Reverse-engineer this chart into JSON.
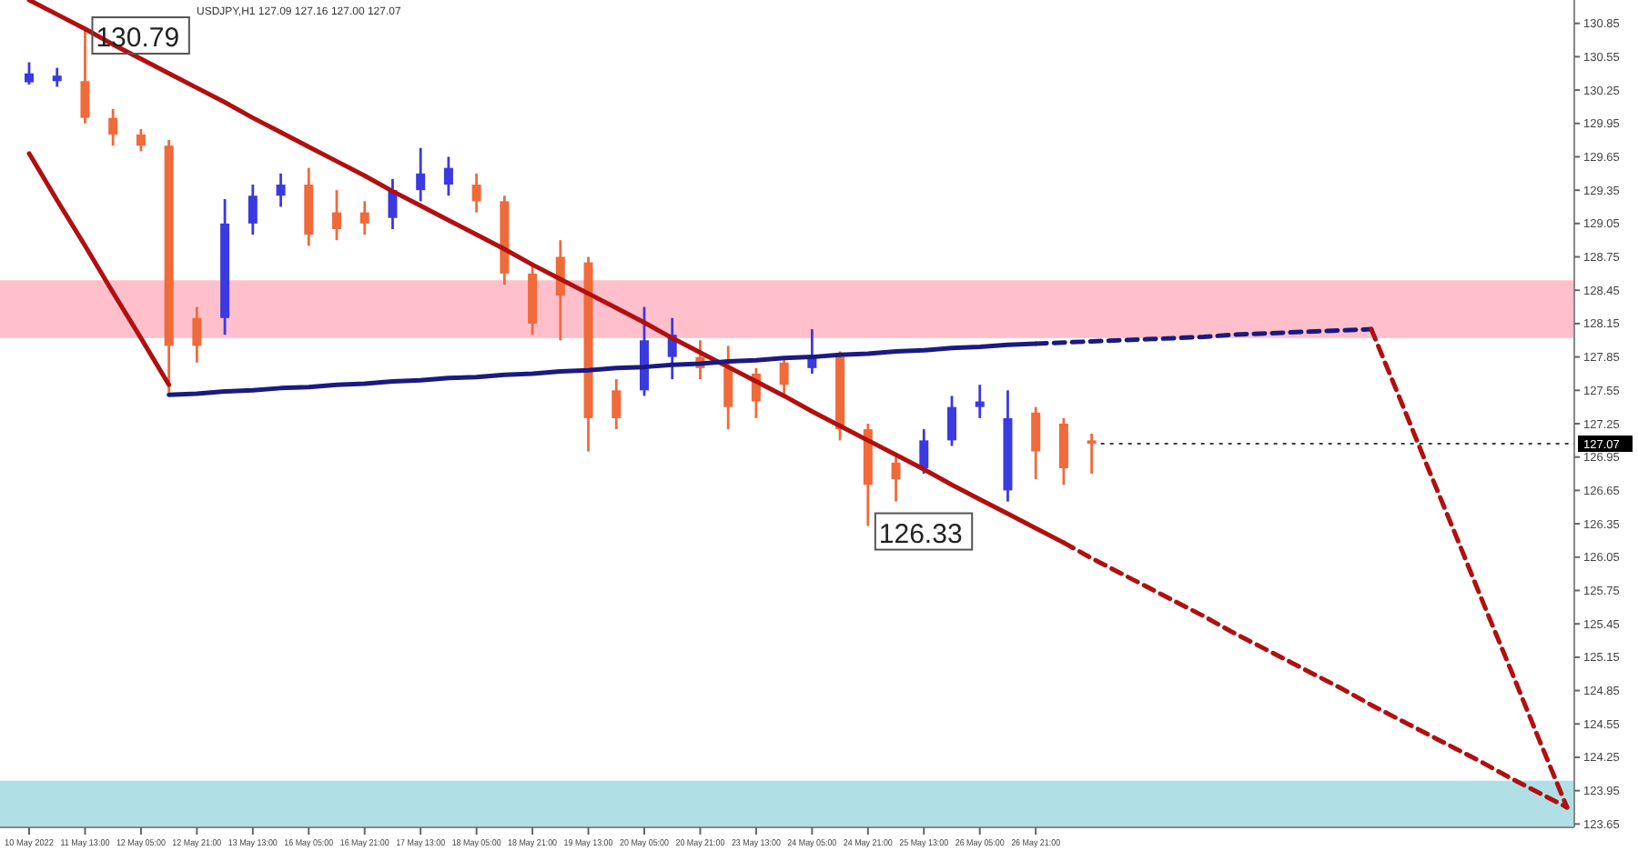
{
  "chart_data": {
    "type": "candlestick",
    "title": "USDJPY,H1  127.09 127.16 127.00 127.07",
    "categories": [
      "10 May 2022",
      null,
      "11 May 13:00",
      null,
      "12 May 05:00",
      null,
      "12 May 21:00",
      null,
      "13 May 13:00",
      null,
      "16 May 05:00",
      null,
      "16 May 21:00",
      null,
      "17 May 13:00",
      null,
      "18 May 05:00",
      null,
      "18 May 21:00",
      null,
      "19 May 13:00",
      null,
      "20 May 05:00",
      null,
      "20 May 21:00",
      null,
      "23 May 13:00",
      null,
      "24 May 05:00",
      null,
      "24 May 21:00",
      null,
      "25 May 13:00",
      null,
      "26 May 05:00",
      null,
      "26 May 21:00",
      null,
      null,
      null,
      null,
      null,
      null,
      null,
      null,
      null,
      null,
      null,
      null,
      null,
      null,
      null,
      null,
      null,
      null,
      null
    ],
    "ohlc": [
      [
        130.32,
        130.5,
        130.3,
        130.4
      ],
      [
        130.33,
        130.45,
        130.28,
        130.38
      ],
      [
        130.33,
        130.79,
        129.95,
        130.0
      ],
      [
        130.0,
        130.08,
        129.75,
        129.85
      ],
      [
        129.85,
        129.9,
        129.7,
        129.75
      ],
      [
        129.75,
        129.8,
        127.53,
        127.95
      ],
      [
        128.2,
        128.3,
        127.8,
        127.95
      ],
      [
        128.2,
        129.27,
        128.05,
        129.05
      ],
      [
        129.05,
        129.4,
        128.95,
        129.3
      ],
      [
        129.3,
        129.5,
        129.2,
        129.4
      ],
      [
        129.4,
        129.55,
        128.85,
        128.95
      ],
      [
        129.15,
        129.35,
        128.9,
        129.0
      ],
      [
        129.15,
        129.25,
        128.95,
        129.05
      ],
      [
        129.1,
        129.45,
        129.0,
        129.35
      ],
      [
        129.35,
        129.73,
        129.25,
        129.5
      ],
      [
        129.4,
        129.65,
        129.3,
        129.55
      ],
      [
        129.4,
        129.5,
        129.15,
        129.25
      ],
      [
        129.25,
        129.3,
        128.5,
        128.6
      ],
      [
        128.6,
        128.7,
        128.05,
        128.15
      ],
      [
        128.75,
        128.9,
        128.0,
        128.4
      ],
      [
        128.7,
        128.75,
        127.0,
        127.3
      ],
      [
        127.55,
        127.65,
        127.2,
        127.3
      ],
      [
        127.55,
        128.3,
        127.5,
        128.0
      ],
      [
        127.85,
        128.2,
        127.65,
        128.05
      ],
      [
        127.85,
        128.0,
        127.65,
        127.75
      ],
      [
        127.75,
        127.95,
        127.2,
        127.4
      ],
      [
        127.7,
        127.75,
        127.3,
        127.45
      ],
      [
        127.8,
        127.85,
        127.5,
        127.6
      ],
      [
        127.75,
        128.1,
        127.7,
        127.85
      ],
      [
        127.85,
        127.9,
        127.1,
        127.2
      ],
      [
        127.2,
        127.25,
        126.33,
        126.7
      ],
      [
        126.9,
        126.95,
        126.55,
        126.75
      ],
      [
        126.85,
        127.2,
        126.8,
        127.1
      ],
      [
        127.1,
        127.5,
        127.05,
        127.4
      ],
      [
        127.4,
        127.6,
        127.3,
        127.45
      ],
      [
        126.65,
        127.55,
        126.55,
        127.3
      ],
      [
        127.35,
        127.4,
        126.75,
        127.0
      ],
      [
        127.25,
        127.3,
        126.7,
        126.85
      ],
      [
        127.1,
        127.16,
        126.8,
        127.07
      ],
      null,
      null,
      null,
      null,
      null,
      null,
      null,
      null,
      null,
      null,
      null,
      null,
      null,
      null,
      null,
      null,
      null
    ],
    "colors": [
      "#3a3ae0",
      "#3a3ae0",
      "#f06a3a",
      "#f06a3a",
      "#f06a3a",
      "#f06a3a",
      "#f06a3a",
      "#3a3ae0",
      "#3a3ae0",
      "#3a3ae0",
      "#f06a3a",
      "#f06a3a",
      "#f06a3a",
      "#3a3ae0",
      "#3a3ae0",
      "#3a3ae0",
      "#f06a3a",
      "#f06a3a",
      "#f06a3a",
      "#f06a3a",
      "#f06a3a",
      "#f06a3a",
      "#3a3ae0",
      "#3a3ae0",
      "#f06a3a",
      "#f06a3a",
      "#f06a3a",
      "#f06a3a",
      "#3a3ae0",
      "#f06a3a",
      "#f06a3a",
      "#f06a3a",
      "#3a3ae0",
      "#3a3ae0",
      "#3a3ae0",
      "#3a3ae0",
      "#f06a3a",
      "#f06a3a",
      "#f06a3a",
      null,
      null,
      null,
      null,
      null,
      null,
      null,
      null,
      null,
      null,
      null,
      null,
      null,
      null,
      null,
      null,
      null
    ],
    "series": [
      {
        "type": "line",
        "color": "#b01010",
        "line_style": "solid",
        "values": [
          131.06,
          130.93,
          130.8,
          130.66,
          130.53,
          130.4,
          130.27,
          130.14,
          130.0,
          129.87,
          129.74,
          129.61,
          129.48,
          129.34,
          129.21,
          129.08,
          128.95,
          128.82,
          128.68,
          128.55,
          128.42,
          128.29,
          128.16,
          128.02,
          127.89,
          127.76,
          127.63,
          127.5,
          127.36,
          127.23,
          127.1,
          126.97,
          126.84,
          126.7,
          126.57,
          126.44,
          126.31,
          126.18,
          null,
          null,
          null,
          null,
          null,
          null,
          null,
          null,
          null,
          null,
          null,
          null,
          null,
          null,
          null,
          null,
          null,
          null
        ]
      },
      {
        "type": "line",
        "color": "#b01010",
        "line_style": "dashed",
        "values": [
          null,
          null,
          null,
          null,
          null,
          null,
          null,
          null,
          null,
          null,
          null,
          null,
          null,
          null,
          null,
          null,
          null,
          null,
          null,
          null,
          null,
          null,
          null,
          null,
          null,
          null,
          null,
          null,
          null,
          null,
          null,
          null,
          null,
          null,
          null,
          null,
          null,
          126.18,
          126.04,
          125.91,
          125.78,
          125.65,
          125.52,
          125.38,
          125.25,
          125.12,
          124.99,
          124.86,
          124.72,
          124.59,
          124.46,
          124.33,
          124.2,
          124.06,
          123.93,
          123.8
        ]
      },
      {
        "type": "line",
        "color": "#b01010",
        "line_style": "solid",
        "values": [
          129.68,
          129.26,
          128.85,
          128.43,
          128.02,
          127.6,
          null,
          null,
          null,
          null,
          null,
          null,
          null,
          null,
          null,
          null,
          null,
          null,
          null,
          null,
          null,
          null,
          null,
          null,
          null,
          null,
          null,
          null,
          null,
          null,
          null,
          null,
          null,
          null,
          null,
          null,
          null,
          null,
          null,
          null,
          null,
          null,
          null,
          null,
          null,
          null,
          null,
          null,
          null,
          null,
          null,
          null,
          null,
          null,
          null,
          null
        ]
      },
      {
        "type": "line",
        "color": "#1a1a80",
        "line_style": "solid",
        "values": [
          null,
          null,
          null,
          null,
          null,
          127.51,
          127.52,
          127.54,
          127.55,
          127.57,
          127.58,
          127.6,
          127.61,
          127.63,
          127.64,
          127.66,
          127.67,
          127.69,
          127.7,
          127.72,
          127.73,
          127.75,
          127.76,
          127.78,
          127.79,
          127.81,
          127.82,
          127.84,
          127.85,
          127.87,
          127.88,
          127.9,
          127.91,
          127.93,
          127.94,
          127.96,
          127.97,
          null,
          null,
          null,
          null,
          null,
          null,
          null,
          null,
          null,
          null,
          null,
          null,
          null,
          null,
          null,
          null,
          null,
          null,
          null
        ]
      },
      {
        "type": "line",
        "color": "#1a1a80",
        "line_style": "dashed",
        "values": [
          null,
          null,
          null,
          null,
          null,
          null,
          null,
          null,
          null,
          null,
          null,
          null,
          null,
          null,
          null,
          null,
          null,
          null,
          null,
          null,
          null,
          null,
          null,
          null,
          null,
          null,
          null,
          null,
          null,
          null,
          null,
          null,
          null,
          null,
          null,
          null,
          127.97,
          127.98,
          127.99,
          128.0,
          128.01,
          128.02,
          128.03,
          128.05,
          128.06,
          128.07,
          128.08,
          128.09,
          128.1,
          null,
          null,
          null,
          null,
          null,
          null,
          null
        ]
      },
      {
        "type": "line",
        "color": "#b01010",
        "line_style": "dashed",
        "values": [
          null,
          null,
          null,
          null,
          null,
          null,
          null,
          null,
          null,
          null,
          null,
          null,
          null,
          null,
          null,
          null,
          null,
          null,
          null,
          null,
          null,
          null,
          null,
          null,
          null,
          null,
          null,
          null,
          null,
          null,
          null,
          null,
          null,
          null,
          null,
          null,
          null,
          null,
          null,
          null,
          null,
          null,
          null,
          null,
          null,
          null,
          null,
          null,
          128.1,
          127.49,
          126.87,
          126.26,
          125.64,
          125.03,
          124.41,
          123.8
        ]
      }
    ],
    "bands": [
      {
        "axis": "y",
        "from": 128.02,
        "to": 128.54,
        "color": "#ffc0cb"
      },
      {
        "axis": "y",
        "from": 123.62,
        "to": 124.04,
        "color": "#b0e0e6"
      }
    ],
    "ref_lines": [
      {
        "axis": "y",
        "value": 127.07,
        "label": "127.07",
        "color": "#000000",
        "line_style": "dotted"
      }
    ],
    "annotations": [
      {
        "text": "130.79",
        "x": "11 May 13:00",
        "y": 130.79
      },
      {
        "text": "126.33",
        "x": "24 May 21:00",
        "y": 126.33
      }
    ],
    "ylim": [
      123.62,
      131.06
    ],
    "yticks": [
      130.85,
      130.55,
      130.25,
      129.95,
      129.65,
      129.35,
      129.05,
      128.75,
      128.45,
      128.15,
      127.85,
      127.55,
      127.25,
      126.95,
      126.65,
      126.35,
      126.05,
      125.75,
      125.45,
      125.15,
      124.85,
      124.55,
      124.25,
      123.95,
      123.65
    ]
  }
}
